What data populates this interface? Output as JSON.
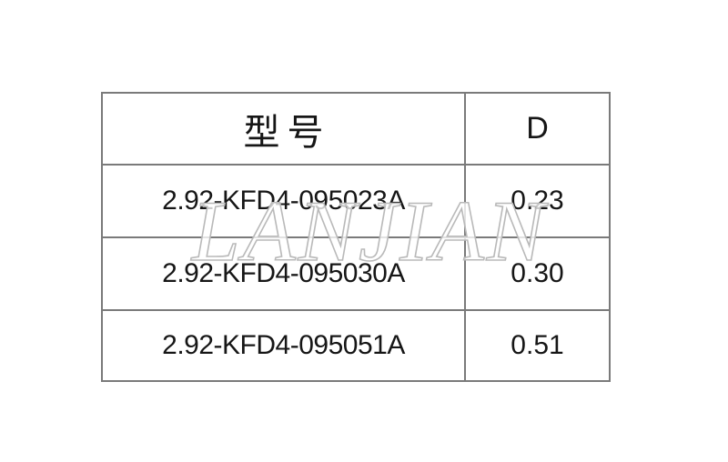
{
  "page": {
    "background_color": "#ffffff"
  },
  "watermark": {
    "text": "LANJIAN",
    "stroke_color": "#b9b9b9",
    "fill_color": "rgba(255,255,255,0.78)"
  },
  "table": {
    "border_color": "#7a7a7a",
    "text_color": "#161616",
    "columns": [
      {
        "key": "model",
        "label": "型号"
      },
      {
        "key": "d",
        "label": "D"
      }
    ],
    "rows": [
      {
        "model": "2.92-KFD4-095023A",
        "d": "0.23"
      },
      {
        "model": "2.92-KFD4-095030A",
        "d": "0.30"
      },
      {
        "model": "2.92-KFD4-095051A",
        "d": "0.51"
      }
    ]
  }
}
